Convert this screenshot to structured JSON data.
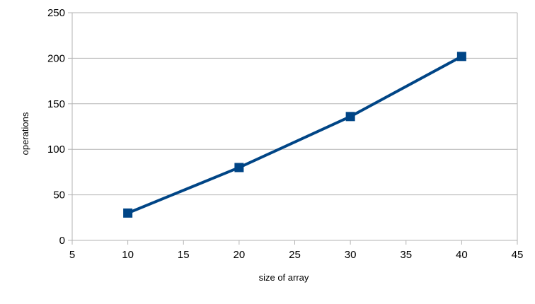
{
  "chart_data": {
    "type": "line",
    "title": "",
    "xlabel": "size of array",
    "ylabel": "operations",
    "xlim": [
      5,
      45
    ],
    "ylim": [
      0,
      250
    ],
    "x_ticks": [
      5,
      10,
      15,
      20,
      25,
      30,
      35,
      40,
      45
    ],
    "y_ticks": [
      0,
      50,
      100,
      150,
      200,
      250
    ],
    "grid": "horizontal",
    "legend": "none",
    "marker": "square",
    "series": [
      {
        "name": "",
        "color": "#004586",
        "points": [
          {
            "x": 10,
            "y": 30
          },
          {
            "x": 20,
            "y": 80
          },
          {
            "x": 30,
            "y": 136
          },
          {
            "x": 40,
            "y": 202
          }
        ]
      }
    ]
  }
}
